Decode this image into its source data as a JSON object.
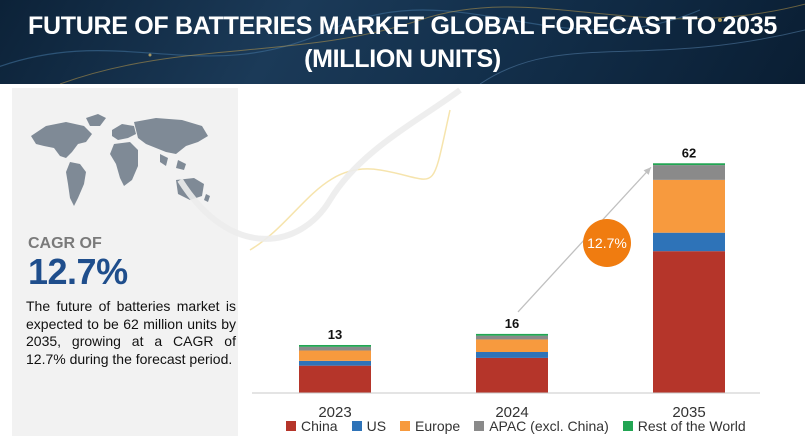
{
  "header": {
    "title_line1": "FUTURE OF BATTERIES MARKET GLOBAL FORECAST TO 2035",
    "title_line2": "(MILLION UNITS)"
  },
  "summary": {
    "cagr_label": "CAGR OF",
    "cagr_value": "12.7%",
    "description": "The future of batteries market is expected to be 62 million units by 2035, growing at a CAGR of 12.7% during the forecast period."
  },
  "chart_data": {
    "type": "bar",
    "stacked": true,
    "title": "FUTURE OF BATTERIES MARKET GLOBAL FORECAST TO 2035 (MILLION UNITS)",
    "categories": [
      "2023",
      "2024",
      "2035"
    ],
    "totals": [
      13,
      16,
      62
    ],
    "total_labels": [
      "13",
      "16",
      "62"
    ],
    "series": [
      {
        "name": "China",
        "color": "#b5352a",
        "values": [
          7.4,
          9.5,
          38.4
        ]
      },
      {
        "name": "US",
        "color": "#2e73b8",
        "values": [
          1.3,
          1.6,
          5.0
        ]
      },
      {
        "name": "Europe",
        "color": "#f79a3e",
        "values": [
          2.8,
          3.4,
          14.3
        ]
      },
      {
        "name": "APAC (excl. China)",
        "color": "#8a8a8a",
        "values": [
          1.0,
          1.0,
          4.0
        ]
      },
      {
        "name": "Rest of the World",
        "color": "#22a553",
        "values": [
          0.5,
          0.5,
          0.5
        ]
      }
    ],
    "ylim": [
      0,
      62
    ],
    "grid": false,
    "legend": "bottom",
    "annotation": {
      "text": "12.7%",
      "color": "#f07c10"
    }
  }
}
